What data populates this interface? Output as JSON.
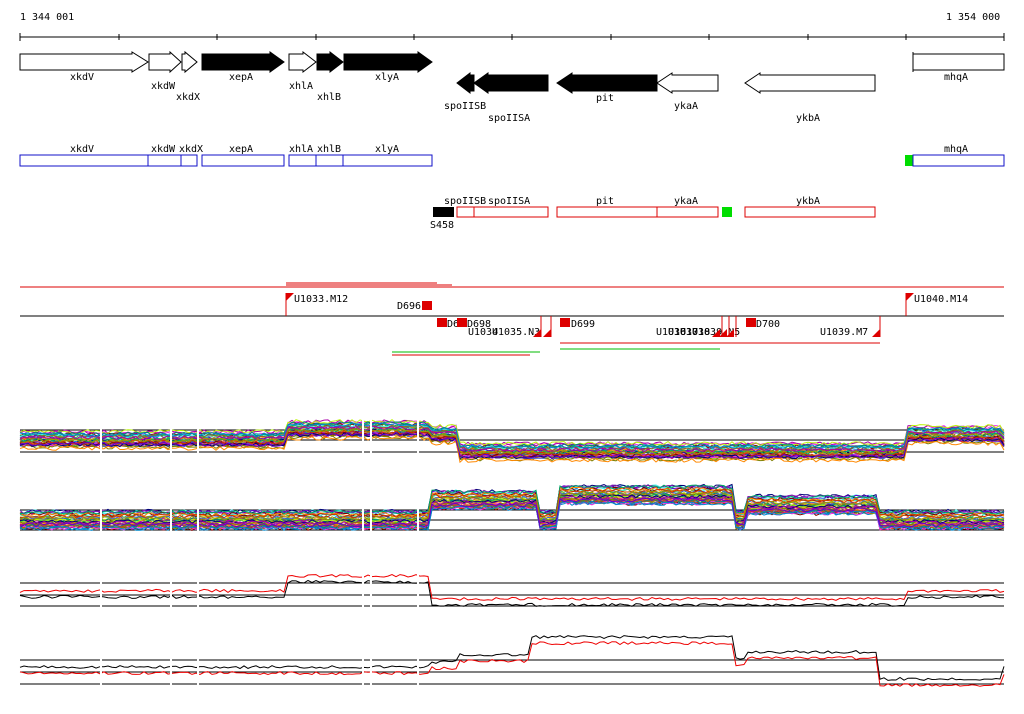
{
  "ruler": {
    "start_label": "1 344 001",
    "end_label": "1 354 000"
  },
  "genes": [
    {
      "name": "xkdV",
      "strand": "+",
      "fill": "white"
    },
    {
      "name": "xkdW",
      "strand": "+",
      "fill": "white"
    },
    {
      "name": "xkdX",
      "strand": "+",
      "fill": "white"
    },
    {
      "name": "xepA",
      "strand": "+",
      "fill": "black"
    },
    {
      "name": "xhlA",
      "strand": "+",
      "fill": "white"
    },
    {
      "name": "xhlB",
      "strand": "+",
      "fill": "black"
    },
    {
      "name": "xlyA",
      "strand": "+",
      "fill": "black"
    },
    {
      "name": "spoIISB",
      "strand": "-",
      "fill": "black"
    },
    {
      "name": "spoIISA",
      "strand": "-",
      "fill": "black"
    },
    {
      "name": "pit",
      "strand": "-",
      "fill": "black"
    },
    {
      "name": "ykaA",
      "strand": "-",
      "fill": "white"
    },
    {
      "name": "ykbA",
      "strand": "-",
      "fill": "white"
    },
    {
      "name": "mhqA",
      "strand": "+",
      "fill": "white"
    }
  ],
  "blue_track": {
    "labels": [
      "xkdV",
      "xkdW",
      "xkdX",
      "xepA",
      "xhlA",
      "xhlB",
      "xlyA",
      "mhqA"
    ]
  },
  "red_track": {
    "labels": [
      "spoIISB",
      "spoIISA",
      "pit",
      "ykaA",
      "ykbA"
    ],
    "marker_label": "S458"
  },
  "features": {
    "labels": [
      "U1033.M12",
      "D696",
      "D6",
      "D698",
      "U1034",
      "U1035.N3",
      "D699",
      "U1036",
      "U1037",
      "U1038",
      "U1039.N5",
      "D700",
      "U1039.M7",
      "U1040.M14"
    ]
  },
  "colors": {
    "blue_track": "#1010c8",
    "red_track": "#dd0000",
    "marker_green": "#00dd00",
    "line_red": "#ee0000",
    "line_black": "#000000"
  }
}
